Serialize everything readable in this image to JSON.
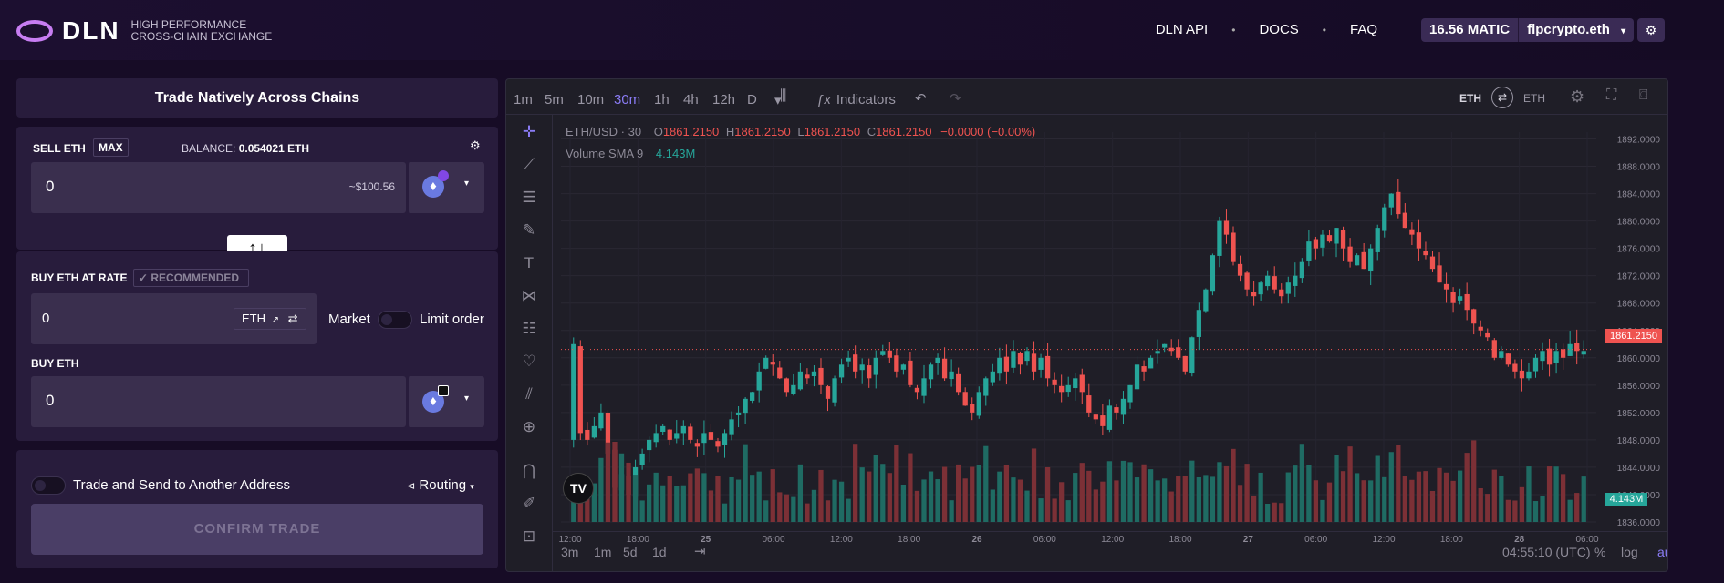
{
  "header": {
    "logo_text": "DLN",
    "logo_sub_line1": "HIGH PERFORMANCE",
    "logo_sub_line2": "CROSS-CHAIN EXCHANGE",
    "nav": [
      "DLN API",
      "DOCS",
      "FAQ"
    ],
    "balance": "16.56 MATIC",
    "account": "flpcrypto.eth"
  },
  "trade": {
    "title": "Trade Natively Across Chains",
    "sell_label": "SELL ETH",
    "max_label": "MAX",
    "balance_label": "BALANCE:",
    "balance_value": "0.054021 ETH",
    "sell_amount": "0",
    "sell_usd": "~$100.56",
    "rate_label": "BUY ETH AT RATE",
    "recommended": "✓ RECOMMENDED",
    "rate_value": "0",
    "rate_token": "ETH",
    "market_label": "Market",
    "limit_label": "Limit order",
    "buy_label": "BUY ETH",
    "buy_amount": "0",
    "send_label": "Trade and Send to Another Address",
    "routing_label": "Routing",
    "confirm_label": "CONFIRM TRADE"
  },
  "chart": {
    "intervals": [
      "1m",
      "5m",
      "10m",
      "30m",
      "1h",
      "4h",
      "12h",
      "D"
    ],
    "active_interval": "30m",
    "indicators_label": "Indicators",
    "pair_left": "ETH",
    "pair_right": "ETH",
    "symbol": "ETH/USD · 30",
    "ohlc": {
      "o": "1861.2150",
      "h": "1861.2150",
      "l": "1861.2150",
      "c": "1861.2150",
      "change": "−0.0000 (−0.00%)"
    },
    "volume_label": "Volume SMA 9",
    "volume_value": "4.143M",
    "price_badge": "1861.2150",
    "volume_badge": "4.143M",
    "y_ticks": [
      "1892.0000",
      "1888.0000",
      "1884.0000",
      "1880.0000",
      "1876.0000",
      "1872.0000",
      "1868.0000",
      "1864.0000",
      "1860.0000",
      "1856.0000",
      "1852.0000",
      "1848.0000",
      "1844.0000",
      "1840.0000",
      "1836.0000"
    ],
    "x_ticks": [
      "12:00",
      "18:00",
      "25",
      "06:00",
      "12:00",
      "18:00",
      "26",
      "06:00",
      "12:00",
      "18:00",
      "27",
      "06:00",
      "12:00",
      "18:00",
      "28",
      "06:00"
    ],
    "ranges": [
      "3m",
      "1m",
      "5d",
      "1d"
    ],
    "time": "04:55:10 (UTC)",
    "scale_opts": [
      "%",
      "log",
      "auto"
    ]
  },
  "chart_data": {
    "type": "candlestick",
    "title": "ETH/USD · 30",
    "ylim": [
      1836,
      1893
    ],
    "x_start": "2023-05-24 12:00",
    "interval": "30m",
    "closes": [
      1862,
      1849,
      1848,
      1850,
      1852,
      1846,
      1841,
      1843,
      1840,
      1844,
      1846,
      1848,
      1849,
      1850,
      1848,
      1849,
      1850,
      1848,
      1847,
      1849,
      1848,
      1847,
      1849,
      1851,
      1852,
      1854,
      1855,
      1858,
      1860,
      1859,
      1857,
      1855,
      1856,
      1858,
      1857,
      1858,
      1856,
      1854,
      1857,
      1859,
      1860,
      1858,
      1859,
      1857,
      1860,
      1861,
      1860,
      1858,
      1859,
      1856,
      1855,
      1857,
      1859,
      1860,
      1857,
      1858,
      1855,
      1853,
      1852,
      1855,
      1857,
      1858,
      1860,
      1858,
      1861,
      1859,
      1861,
      1858,
      1860,
      1857,
      1856,
      1855,
      1856,
      1857,
      1855,
      1852,
      1851,
      1850,
      1853,
      1852,
      1854,
      1856,
      1859,
      1858,
      1860,
      1861,
      1862,
      1861,
      1860,
      1858,
      1863,
      1867,
      1870,
      1875,
      1880,
      1878,
      1874,
      1872,
      1870,
      1869,
      1871,
      1872,
      1870,
      1869,
      1871,
      1872,
      1874,
      1877,
      1876,
      1878,
      1877,
      1879,
      1876,
      1874,
      1875,
      1873,
      1876,
      1879,
      1882,
      1884,
      1881,
      1879,
      1878,
      1876,
      1875,
      1873,
      1871,
      1870,
      1868,
      1869,
      1867,
      1865,
      1864,
      1863,
      1860,
      1861,
      1859,
      1858,
      1857,
      1858,
      1860,
      1861,
      1859,
      1861,
      1860,
      1862,
      1861,
      1861
    ],
    "volume_label": "Volume SMA 9",
    "last_price": 1861.215
  }
}
